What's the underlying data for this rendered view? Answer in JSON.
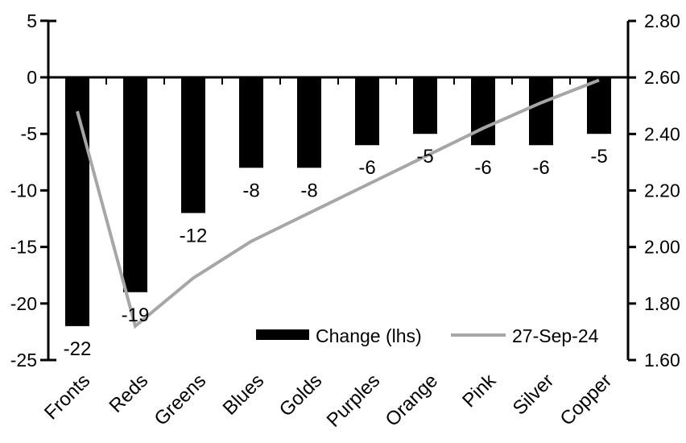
{
  "chart_data": {
    "type": "bar+line",
    "title": "",
    "categories": [
      "Fronts",
      "Reds",
      "Greens",
      "Blues",
      "Golds",
      "Purples",
      "Orange",
      "Pink",
      "Silver",
      "Copper"
    ],
    "series": [
      {
        "name": "Change (lhs)",
        "type": "bar",
        "axis": "left",
        "color": "#000000",
        "values": [
          -22,
          -19,
          -12,
          -8,
          -8,
          -6,
          -5,
          -6,
          -6,
          -5
        ]
      },
      {
        "name": "27-Sep-24",
        "type": "line",
        "axis": "right",
        "color": "#a6a6a6",
        "values": [
          2.48,
          1.72,
          1.89,
          2.02,
          2.12,
          2.22,
          2.32,
          2.42,
          2.51,
          2.59
        ]
      }
    ],
    "bar_labels": [
      "-22",
      "-19",
      "-12",
      "-8",
      "-8",
      "-6",
      "-5",
      "-6",
      "-6",
      "-5"
    ],
    "left_axis": {
      "min": -25,
      "max": 5,
      "step": 5,
      "ticks": [
        5,
        0,
        -5,
        -10,
        -15,
        -20,
        -25
      ]
    },
    "right_axis": {
      "min": 1.6,
      "max": 2.8,
      "step": 0.2,
      "tick_labels": [
        "2.80",
        "2.60",
        "2.40",
        "2.20",
        "2.00",
        "1.80",
        "1.60"
      ]
    },
    "grid": false,
    "legend_position": "bottom-inside",
    "axis_color": "#000000",
    "background_color": "#ffffff"
  }
}
